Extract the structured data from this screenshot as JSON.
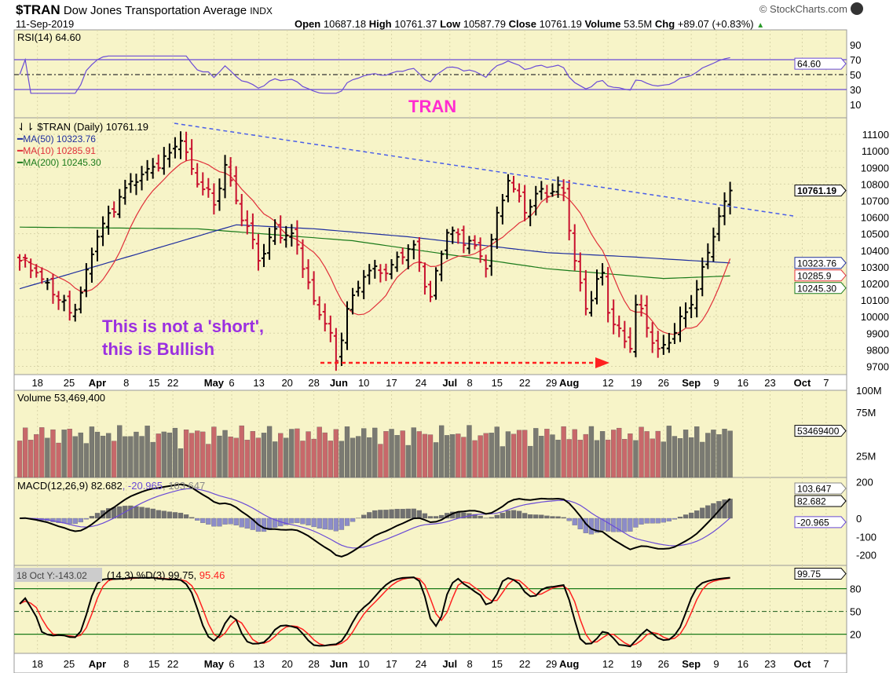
{
  "header": {
    "symbol": "$TRAN",
    "name": "Dow Jones Transportation Average",
    "exchange": "INDX",
    "date": "11-Sep-2019",
    "open_label": "Open",
    "open": "10687.18",
    "high_label": "High",
    "high": "10761.37",
    "low_label": "Low",
    "low": "10587.79",
    "close_label": "Close",
    "close": "10761.19",
    "volume_label": "Volume",
    "volume": "53.5M",
    "chg_label": "Chg",
    "chg": "+89.07 (+0.83%)",
    "copyright": "© StockCharts.com"
  },
  "colors": {
    "panel_bg": "#f7f4c8",
    "up": "#000000",
    "down": "#c8102e",
    "ma50": "#1f2e9e",
    "ma10": "#e0303a",
    "ma200": "#1a7a1a",
    "rsi": "#6a4bd6",
    "trend": "#4a5ee8",
    "annot_magenta": "#ff2bd0",
    "annot_purple": "#9b30e0",
    "vol_up": "#7a7a72",
    "vol_down": "#c8686a",
    "hist": "#8c8cc8"
  },
  "chart_data": {
    "type": "ohlc",
    "title": "$TRAN (Daily) 10761.19",
    "close_anchors": [
      [
        0,
        10337
      ],
      [
        3,
        10265
      ],
      [
        9,
        10023
      ],
      [
        11,
        10144
      ],
      [
        14,
        10482
      ],
      [
        18,
        10723
      ],
      [
        23,
        10892
      ],
      [
        27,
        10989
      ],
      [
        29,
        11061
      ],
      [
        31,
        10892
      ],
      [
        35,
        10675
      ],
      [
        37,
        10916
      ],
      [
        39,
        10700
      ],
      [
        43,
        10337
      ],
      [
        46,
        10530
      ],
      [
        50,
        10434
      ],
      [
        53,
        10096
      ],
      [
        56,
        9902
      ],
      [
        57,
        9733
      ],
      [
        59,
        10047
      ],
      [
        62,
        10240
      ],
      [
        67,
        10313
      ],
      [
        71,
        10434
      ],
      [
        74,
        10120
      ],
      [
        77,
        10506
      ],
      [
        81,
        10458
      ],
      [
        84,
        10289
      ],
      [
        86,
        10627
      ],
      [
        88,
        10820
      ],
      [
        91,
        10627
      ],
      [
        94,
        10771
      ],
      [
        98,
        10747
      ],
      [
        100,
        10337
      ],
      [
        102,
        10047
      ],
      [
        105,
        10265
      ],
      [
        106,
        10023
      ],
      [
        110,
        9806
      ],
      [
        111,
        10072
      ],
      [
        115,
        9806
      ],
      [
        116,
        9830
      ],
      [
        118,
        9902
      ],
      [
        121,
        10072
      ],
      [
        124,
        10386
      ],
      [
        125,
        10482
      ],
      [
        128,
        10761
      ]
    ],
    "ma50_anchors": [
      [
        0,
        10168
      ],
      [
        39,
        10554
      ],
      [
        53,
        10530
      ],
      [
        70,
        10482
      ],
      [
        95,
        10386
      ],
      [
        110,
        10361
      ],
      [
        128,
        10323.76
      ]
    ],
    "ma200_anchors": [
      [
        0,
        10540
      ],
      [
        32,
        10530
      ],
      [
        60,
        10458
      ],
      [
        95,
        10289
      ],
      [
        116,
        10230
      ],
      [
        128,
        10245.3
      ]
    ],
    "price_ylim": [
      9650,
      11200
    ],
    "price_ticks": [
      "11100",
      "11000",
      "10900",
      "10800",
      "10700",
      "10600",
      "10500",
      "10400",
      "10300",
      "10200",
      "10100",
      "10000",
      "9900",
      "9800",
      "9700"
    ],
    "x_ticks": [
      [
        "18",
        3.2,
        false
      ],
      [
        "25",
        8.9,
        false
      ],
      [
        "Apr",
        14,
        true
      ],
      [
        "8",
        19.2,
        false
      ],
      [
        "15",
        24.2,
        false
      ],
      [
        "22",
        27.6,
        false
      ],
      [
        "May",
        35,
        true
      ],
      [
        "6",
        38.2,
        false
      ],
      [
        "13",
        43.1,
        false
      ],
      [
        "20",
        48.2,
        false
      ],
      [
        "28",
        53,
        false
      ],
      [
        "Jun",
        57.5,
        true
      ],
      [
        "10",
        62,
        false
      ],
      [
        "17",
        67,
        false
      ],
      [
        "24",
        72.3,
        false
      ],
      [
        "Jul",
        77.5,
        true
      ],
      [
        "8",
        81.1,
        false
      ],
      [
        "15",
        86,
        false
      ],
      [
        "22",
        91,
        false
      ],
      [
        "29",
        95.8,
        false
      ],
      [
        "Aug",
        99,
        true
      ],
      [
        "12",
        106,
        false
      ],
      [
        "19",
        111.1,
        false
      ],
      [
        "26",
        116,
        false
      ],
      [
        "Sep",
        121,
        true
      ],
      [
        "9",
        125.5,
        false
      ],
      [
        "16",
        130.3,
        false
      ],
      [
        "23",
        135.2,
        false
      ],
      [
        "Oct",
        141,
        true
      ],
      [
        "7",
        145.3,
        false
      ]
    ],
    "x_range_days": [
      -1,
      149
    ],
    "legend": {
      "main": "$TRAN (Daily) 10761.19",
      "ma50": "MA(50) 10323.76",
      "ma10": "MA(10) 10285.91",
      "ma200": "MA(200) 10245.30"
    },
    "price_tags": {
      "close": "10761.19",
      "ma50": "10323.76",
      "ma10": "10285.9",
      "ma200": "10245.30"
    },
    "rsi": {
      "label": "RSI(14) 64.60",
      "last": 64.6,
      "ticks": [
        "90",
        "70",
        "50",
        "30",
        "10"
      ],
      "tag": "64.60"
    },
    "volume": {
      "label": "Volume 53,469,400",
      "ticks": [
        "100M",
        "75M",
        "25M"
      ],
      "tag": "53469400",
      "last": 53469400
    },
    "macd": {
      "label_a": "MACD(12,26,9) 82.682",
      "label_b": ", -20.965",
      "label_c": ", 103.647",
      "ticks": [
        "200",
        "0",
        "-100",
        "-200"
      ],
      "tag_macd": "82.682",
      "tag_hist": "-20.965",
      "tag_signal": "103.647"
    },
    "stoch": {
      "label_tooltip": "18 Oct Y:-143.02",
      "label_a": "(14,3) %D(3) 99.75, ",
      "label_b": "95.46",
      "ticks": [
        "80",
        "50",
        "20"
      ],
      "tag": "99.75"
    },
    "annotations": {
      "tran": "TRAN",
      "note1": "This is not a 'short',",
      "note2": "this is Bullish"
    }
  }
}
